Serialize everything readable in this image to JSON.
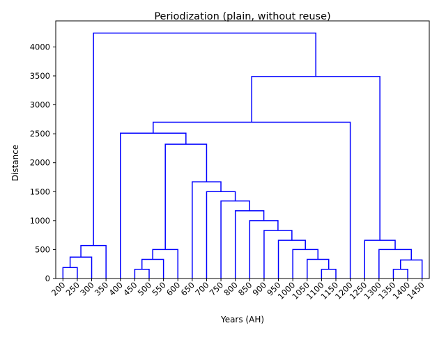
{
  "chart_data": {
    "type": "dendrogram",
    "title": "Periodization (plain, without reuse)",
    "xlabel": "Years (AH)",
    "ylabel": "Distance",
    "ylim": [
      0,
      4450
    ],
    "yticks": [
      0,
      500,
      1000,
      1500,
      2000,
      2500,
      3000,
      3500,
      4000
    ],
    "grid": false,
    "legend": "none",
    "link_color": "#0000ff",
    "leaves": [
      "200",
      "250",
      "300",
      "350",
      "400",
      "450",
      "500",
      "550",
      "600",
      "650",
      "700",
      "750",
      "800",
      "850",
      "900",
      "950",
      "1000",
      "1050",
      "1100",
      "1150",
      "1200",
      "1250",
      "1300",
      "1350",
      "1400",
      "1450"
    ],
    "merges": [
      {
        "a": "L0",
        "b": "L1",
        "height": 190
      },
      {
        "a": "M0",
        "b": "L2",
        "height": 370
      },
      {
        "a": "M1",
        "b": "L3",
        "height": 570
      },
      {
        "a": "L5",
        "b": "L6",
        "height": 160
      },
      {
        "a": "M3",
        "b": "L7",
        "height": 330
      },
      {
        "a": "M4",
        "b": "L8",
        "height": 500
      },
      {
        "a": "L18",
        "b": "L19",
        "height": 160
      },
      {
        "a": "L17",
        "b": "M6",
        "height": 330
      },
      {
        "a": "L16",
        "b": "M7",
        "height": 500
      },
      {
        "a": "L15",
        "b": "M8",
        "height": 660
      },
      {
        "a": "L14",
        "b": "M9",
        "height": 830
      },
      {
        "a": "L13",
        "b": "M10",
        "height": 1000
      },
      {
        "a": "L12",
        "b": "M11",
        "height": 1170
      },
      {
        "a": "L11",
        "b": "M12",
        "height": 1340
      },
      {
        "a": "L10",
        "b": "M13",
        "height": 1500
      },
      {
        "a": "L9",
        "b": "M14",
        "height": 1670
      },
      {
        "a": "M5",
        "b": "M15",
        "height": 2320
      },
      {
        "a": "L4",
        "b": "M16",
        "height": 2510
      },
      {
        "a": "M17",
        "b": "L20",
        "height": 2700
      },
      {
        "a": "L23",
        "b": "L24",
        "height": 160
      },
      {
        "a": "M19",
        "b": "L25",
        "height": 320
      },
      {
        "a": "L22",
        "b": "M20",
        "height": 500
      },
      {
        "a": "L21",
        "b": "M21",
        "height": 660
      },
      {
        "a": "M18",
        "b": "M22",
        "height": 3490
      },
      {
        "a": "M2",
        "b": "M23",
        "height": 4240
      }
    ]
  }
}
